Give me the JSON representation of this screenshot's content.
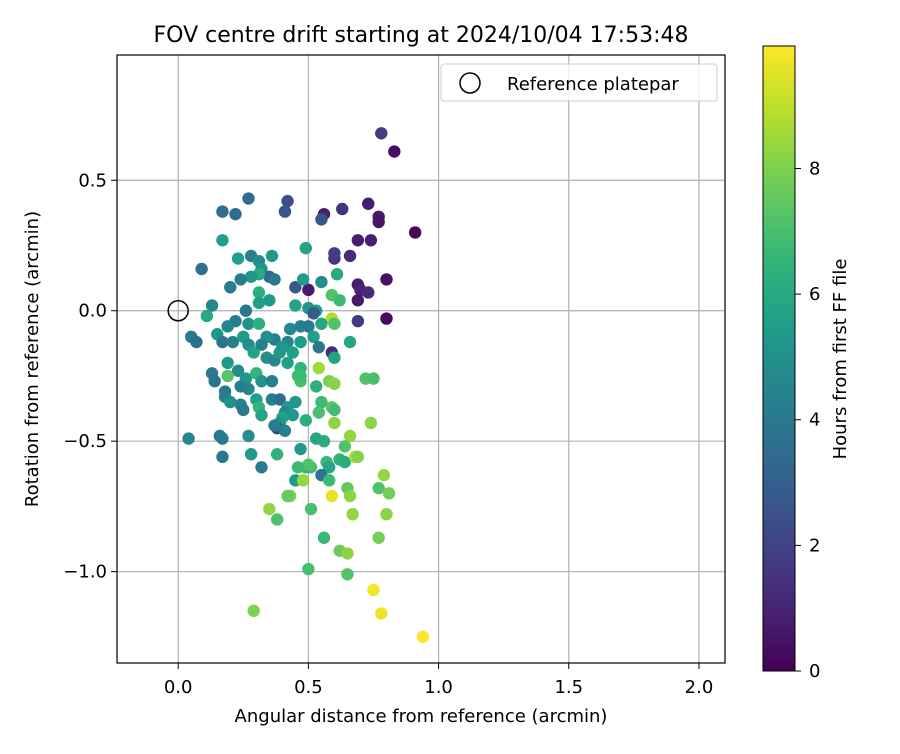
{
  "chart_data": {
    "type": "scatter",
    "title": "FOV centre drift starting at 2024/10/04 17:53:48",
    "xlabel": "Angular distance from reference (arcmin)",
    "ylabel": "Rotation from reference (arcmin)",
    "xlim": [
      -0.235,
      2.1
    ],
    "ylim": [
      -1.35,
      0.98
    ],
    "xticks": [
      0.0,
      0.5,
      1.0,
      1.5,
      2.0
    ],
    "xtick_labels": [
      "0.0",
      "0.5",
      "1.0",
      "1.5",
      "2.0"
    ],
    "yticks": [
      -1.0,
      -0.5,
      0.0,
      0.5
    ],
    "ytick_labels": [
      "−1.0",
      "−0.5",
      "0.0",
      "0.5"
    ],
    "grid": true,
    "colormap": "viridis",
    "colorbar": {
      "label": "Hours from first FF file",
      "range": [
        0,
        9.95
      ],
      "ticks": [
        0,
        2,
        4,
        6,
        8
      ],
      "tick_labels": [
        "0",
        "2",
        "4",
        "6",
        "8"
      ]
    },
    "legend": {
      "placement": "top-right",
      "entries": [
        {
          "label": "Reference platepar",
          "marker": "open-circle"
        }
      ]
    },
    "reference_point": {
      "x": 0.0,
      "y": 0.0
    },
    "points": [
      {
        "x": 0.78,
        "y": 0.68,
        "c": 1.8
      },
      {
        "x": 0.83,
        "y": 0.61,
        "c": 0.4
      },
      {
        "x": 0.91,
        "y": 0.3,
        "c": 0.2
      },
      {
        "x": 0.73,
        "y": 0.41,
        "c": 0.8
      },
      {
        "x": 0.77,
        "y": 0.36,
        "c": 0.7
      },
      {
        "x": 0.77,
        "y": 0.34,
        "c": 0.6
      },
      {
        "x": 0.63,
        "y": 0.39,
        "c": 1.5
      },
      {
        "x": 0.56,
        "y": 0.37,
        "c": 0.8
      },
      {
        "x": 0.55,
        "y": 0.35,
        "c": 2.6
      },
      {
        "x": 0.42,
        "y": 0.42,
        "c": 2.4
      },
      {
        "x": 0.41,
        "y": 0.38,
        "c": 2.6
      },
      {
        "x": 0.27,
        "y": 0.43,
        "c": 3.5
      },
      {
        "x": 0.17,
        "y": 0.38,
        "c": 3.6
      },
      {
        "x": 0.22,
        "y": 0.37,
        "c": 3.5
      },
      {
        "x": 0.69,
        "y": 0.27,
        "c": 0.8
      },
      {
        "x": 0.74,
        "y": 0.27,
        "c": 0.9
      },
      {
        "x": 0.66,
        "y": 0.21,
        "c": 1.2
      },
      {
        "x": 0.6,
        "y": 0.2,
        "c": 1.6
      },
      {
        "x": 0.6,
        "y": 0.22,
        "c": 1.8
      },
      {
        "x": 0.8,
        "y": 0.12,
        "c": 0.5
      },
      {
        "x": 0.69,
        "y": 0.1,
        "c": 0.8
      },
      {
        "x": 0.7,
        "y": 0.08,
        "c": 1.0
      },
      {
        "x": 0.73,
        "y": 0.07,
        "c": 1.2
      },
      {
        "x": 0.69,
        "y": 0.04,
        "c": 0.7
      },
      {
        "x": 0.8,
        "y": -0.03,
        "c": 0.3
      },
      {
        "x": 0.69,
        "y": -0.04,
        "c": 1.7
      },
      {
        "x": 0.5,
        "y": 0.08,
        "c": 0.7
      },
      {
        "x": 0.45,
        "y": 0.09,
        "c": 2.8
      },
      {
        "x": 0.49,
        "y": 0.24,
        "c": 5.8
      },
      {
        "x": 0.48,
        "y": 0.12,
        "c": 5.5
      },
      {
        "x": 0.61,
        "y": 0.14,
        "c": 6.0
      },
      {
        "x": 0.55,
        "y": 0.11,
        "c": 4.9
      },
      {
        "x": 0.59,
        "y": 0.06,
        "c": 7.2
      },
      {
        "x": 0.62,
        "y": 0.04,
        "c": 6.8
      },
      {
        "x": 0.5,
        "y": 0.01,
        "c": 5.2
      },
      {
        "x": 0.53,
        "y": 0.0,
        "c": 5.5
      },
      {
        "x": 0.45,
        "y": 0.02,
        "c": 5.8
      },
      {
        "x": 0.52,
        "y": -0.01,
        "c": 2.8
      },
      {
        "x": 0.59,
        "y": -0.03,
        "c": 8.8
      },
      {
        "x": 0.6,
        "y": -0.05,
        "c": 7.2
      },
      {
        "x": 0.55,
        "y": -0.05,
        "c": 5.9
      },
      {
        "x": 0.43,
        "y": -0.07,
        "c": 4.7
      },
      {
        "x": 0.47,
        "y": -0.06,
        "c": 4.4
      },
      {
        "x": 0.5,
        "y": -0.06,
        "c": 4.1
      },
      {
        "x": 0.52,
        "y": -0.1,
        "c": 5.6
      },
      {
        "x": 0.47,
        "y": -0.12,
        "c": 5.5
      },
      {
        "x": 0.42,
        "y": -0.12,
        "c": 4.6
      },
      {
        "x": 0.37,
        "y": -0.11,
        "c": 4.2
      },
      {
        "x": 0.34,
        "y": -0.1,
        "c": 5.0
      },
      {
        "x": 0.4,
        "y": -0.14,
        "c": 5.3
      },
      {
        "x": 0.44,
        "y": -0.16,
        "c": 5.6
      },
      {
        "x": 0.54,
        "y": -0.14,
        "c": 4.1
      },
      {
        "x": 0.59,
        "y": -0.16,
        "c": 1.3
      },
      {
        "x": 0.6,
        "y": -0.18,
        "c": 5.8
      },
      {
        "x": 0.66,
        "y": -0.12,
        "c": 5.9
      },
      {
        "x": 0.28,
        "y": 0.21,
        "c": 4.3
      },
      {
        "x": 0.31,
        "y": 0.19,
        "c": 4.8
      },
      {
        "x": 0.36,
        "y": 0.21,
        "c": 5.4
      },
      {
        "x": 0.32,
        "y": 0.16,
        "c": 5.1
      },
      {
        "x": 0.35,
        "y": 0.13,
        "c": 3.4
      },
      {
        "x": 0.31,
        "y": 0.14,
        "c": 6.0
      },
      {
        "x": 0.37,
        "y": 0.12,
        "c": 4.0
      },
      {
        "x": 0.28,
        "y": 0.13,
        "c": 5.2
      },
      {
        "x": 0.24,
        "y": 0.12,
        "c": 4.3
      },
      {
        "x": 0.23,
        "y": 0.2,
        "c": 5.6
      },
      {
        "x": 0.17,
        "y": 0.27,
        "c": 5.6
      },
      {
        "x": 0.09,
        "y": 0.16,
        "c": 3.7
      },
      {
        "x": 0.2,
        "y": 0.09,
        "c": 4.2
      },
      {
        "x": 0.31,
        "y": 0.07,
        "c": 6.2
      },
      {
        "x": 0.35,
        "y": 0.04,
        "c": 5.4
      },
      {
        "x": 0.31,
        "y": 0.03,
        "c": 5.6
      },
      {
        "x": 0.26,
        "y": 0.0,
        "c": 4.0
      },
      {
        "x": 0.13,
        "y": 0.02,
        "c": 4.7
      },
      {
        "x": 0.11,
        "y": -0.02,
        "c": 6.0
      },
      {
        "x": 0.22,
        "y": -0.04,
        "c": 4.1
      },
      {
        "x": 0.19,
        "y": -0.06,
        "c": 4.6
      },
      {
        "x": 0.27,
        "y": -0.05,
        "c": 5.0
      },
      {
        "x": 0.31,
        "y": -0.05,
        "c": 6.3
      },
      {
        "x": 0.15,
        "y": -0.09,
        "c": 5.2
      },
      {
        "x": 0.05,
        "y": -0.1,
        "c": 4.0
      },
      {
        "x": 0.07,
        "y": -0.12,
        "c": 3.6
      },
      {
        "x": 0.17,
        "y": -0.12,
        "c": 3.9
      },
      {
        "x": 0.21,
        "y": -0.12,
        "c": 4.3
      },
      {
        "x": 0.25,
        "y": -0.1,
        "c": 5.5
      },
      {
        "x": 0.27,
        "y": -0.13,
        "c": 4.9
      },
      {
        "x": 0.29,
        "y": -0.16,
        "c": 5.8
      },
      {
        "x": 0.32,
        "y": -0.13,
        "c": 4.4
      },
      {
        "x": 0.34,
        "y": -0.18,
        "c": 4.9
      },
      {
        "x": 0.37,
        "y": -0.19,
        "c": 4.6
      },
      {
        "x": 0.39,
        "y": -0.16,
        "c": 5.3
      },
      {
        "x": 0.42,
        "y": -0.2,
        "c": 5.6
      },
      {
        "x": 0.47,
        "y": -0.22,
        "c": 6.5
      },
      {
        "x": 0.46,
        "y": -0.25,
        "c": 6.8
      },
      {
        "x": 0.54,
        "y": -0.22,
        "c": 8.5
      },
      {
        "x": 0.53,
        "y": -0.29,
        "c": 6.3
      },
      {
        "x": 0.58,
        "y": -0.27,
        "c": 8.0
      },
      {
        "x": 0.6,
        "y": -0.28,
        "c": 8.2
      },
      {
        "x": 0.72,
        "y": -0.26,
        "c": 7.2
      },
      {
        "x": 0.75,
        "y": -0.26,
        "c": 7.0
      },
      {
        "x": 0.19,
        "y": -0.2,
        "c": 5.3
      },
      {
        "x": 0.23,
        "y": -0.23,
        "c": 4.8
      },
      {
        "x": 0.13,
        "y": -0.24,
        "c": 4.0
      },
      {
        "x": 0.14,
        "y": -0.27,
        "c": 3.8
      },
      {
        "x": 0.19,
        "y": -0.25,
        "c": 7.3
      },
      {
        "x": 0.26,
        "y": -0.26,
        "c": 5.2
      },
      {
        "x": 0.3,
        "y": -0.24,
        "c": 6.5
      },
      {
        "x": 0.32,
        "y": -0.27,
        "c": 5.1
      },
      {
        "x": 0.36,
        "y": -0.27,
        "c": 4.4
      },
      {
        "x": 0.27,
        "y": -0.3,
        "c": 4.6
      },
      {
        "x": 0.24,
        "y": -0.29,
        "c": 4.2
      },
      {
        "x": 0.47,
        "y": -0.27,
        "c": 7.0
      },
      {
        "x": 0.47,
        "y": -0.25,
        "c": 6.8
      },
      {
        "x": 0.18,
        "y": -0.31,
        "c": 4.1
      },
      {
        "x": 0.18,
        "y": -0.33,
        "c": 4.3
      },
      {
        "x": 0.2,
        "y": -0.35,
        "c": 5.0
      },
      {
        "x": 0.24,
        "y": -0.36,
        "c": 4.5
      },
      {
        "x": 0.25,
        "y": -0.38,
        "c": 4.0
      },
      {
        "x": 0.3,
        "y": -0.34,
        "c": 5.6
      },
      {
        "x": 0.31,
        "y": -0.37,
        "c": 6.5
      },
      {
        "x": 0.36,
        "y": -0.34,
        "c": 4.4
      },
      {
        "x": 0.39,
        "y": -0.34,
        "c": 3.6
      },
      {
        "x": 0.42,
        "y": -0.37,
        "c": 5.4
      },
      {
        "x": 0.45,
        "y": -0.35,
        "c": 5.2
      },
      {
        "x": 0.41,
        "y": -0.39,
        "c": 4.5
      },
      {
        "x": 0.4,
        "y": -0.41,
        "c": 5.7
      },
      {
        "x": 0.44,
        "y": -0.4,
        "c": 5.3
      },
      {
        "x": 0.55,
        "y": -0.35,
        "c": 6.8
      },
      {
        "x": 0.54,
        "y": -0.39,
        "c": 7.0
      },
      {
        "x": 0.59,
        "y": -0.37,
        "c": 7.4
      },
      {
        "x": 0.6,
        "y": -0.38,
        "c": 6.9
      },
      {
        "x": 0.6,
        "y": -0.43,
        "c": 8.2
      },
      {
        "x": 0.49,
        "y": -0.42,
        "c": 6.2
      },
      {
        "x": 0.32,
        "y": -0.4,
        "c": 5.8
      },
      {
        "x": 0.39,
        "y": -0.43,
        "c": 5.0
      },
      {
        "x": 0.38,
        "y": -0.45,
        "c": 1.8
      },
      {
        "x": 0.37,
        "y": -0.44,
        "c": 4.2
      },
      {
        "x": 0.41,
        "y": -0.46,
        "c": 4.4
      },
      {
        "x": 0.16,
        "y": -0.48,
        "c": 3.8
      },
      {
        "x": 0.04,
        "y": -0.49,
        "c": 4.6
      },
      {
        "x": 0.17,
        "y": -0.49,
        "c": 4.1
      },
      {
        "x": 0.27,
        "y": -0.48,
        "c": 4.9
      },
      {
        "x": 0.17,
        "y": -0.56,
        "c": 4.0
      },
      {
        "x": 0.28,
        "y": -0.55,
        "c": 5.3
      },
      {
        "x": 0.32,
        "y": -0.6,
        "c": 4.1
      },
      {
        "x": 0.38,
        "y": -0.55,
        "c": 6.4
      },
      {
        "x": 0.47,
        "y": -0.53,
        "c": 5.4
      },
      {
        "x": 0.53,
        "y": -0.49,
        "c": 5.9
      },
      {
        "x": 0.56,
        "y": -0.5,
        "c": 6.1
      },
      {
        "x": 0.66,
        "y": -0.48,
        "c": 8.3
      },
      {
        "x": 0.64,
        "y": -0.52,
        "c": 7.2
      },
      {
        "x": 0.74,
        "y": -0.43,
        "c": 8.2
      },
      {
        "x": 0.62,
        "y": -0.57,
        "c": 6.4
      },
      {
        "x": 0.64,
        "y": -0.58,
        "c": 6.2
      },
      {
        "x": 0.68,
        "y": -0.56,
        "c": 8.7
      },
      {
        "x": 0.69,
        "y": -0.56,
        "c": 8.1
      },
      {
        "x": 0.57,
        "y": -0.58,
        "c": 6.7
      },
      {
        "x": 0.58,
        "y": -0.6,
        "c": 5.9
      },
      {
        "x": 0.55,
        "y": -0.63,
        "c": 3.9
      },
      {
        "x": 0.51,
        "y": -0.6,
        "c": 7.0
      },
      {
        "x": 0.49,
        "y": -0.6,
        "c": 6.5
      },
      {
        "x": 0.5,
        "y": -0.59,
        "c": 7.2
      },
      {
        "x": 0.46,
        "y": -0.6,
        "c": 6.8
      },
      {
        "x": 0.45,
        "y": -0.65,
        "c": 5.5
      },
      {
        "x": 0.48,
        "y": -0.65,
        "c": 8.4
      },
      {
        "x": 0.58,
        "y": -0.65,
        "c": 6.8
      },
      {
        "x": 0.65,
        "y": -0.68,
        "c": 7.5
      },
      {
        "x": 0.66,
        "y": -0.71,
        "c": 8.2
      },
      {
        "x": 0.59,
        "y": -0.71,
        "c": 9.6
      },
      {
        "x": 0.77,
        "y": -0.68,
        "c": 7.2
      },
      {
        "x": 0.79,
        "y": -0.63,
        "c": 8.4
      },
      {
        "x": 0.81,
        "y": -0.7,
        "c": 7.8
      },
      {
        "x": 0.8,
        "y": -0.78,
        "c": 8.2
      },
      {
        "x": 0.67,
        "y": -0.78,
        "c": 8.3
      },
      {
        "x": 0.43,
        "y": -0.71,
        "c": 8.0
      },
      {
        "x": 0.42,
        "y": -0.71,
        "c": 7.6
      },
      {
        "x": 0.35,
        "y": -0.76,
        "c": 8.3
      },
      {
        "x": 0.38,
        "y": -0.8,
        "c": 7.1
      },
      {
        "x": 0.51,
        "y": -0.76,
        "c": 7.0
      },
      {
        "x": 0.56,
        "y": -0.87,
        "c": 6.7
      },
      {
        "x": 0.62,
        "y": -0.92,
        "c": 7.7
      },
      {
        "x": 0.65,
        "y": -0.93,
        "c": 8.2
      },
      {
        "x": 0.77,
        "y": -0.87,
        "c": 7.8
      },
      {
        "x": 0.5,
        "y": -0.99,
        "c": 7.0
      },
      {
        "x": 0.65,
        "y": -1.01,
        "c": 7.2
      },
      {
        "x": 0.75,
        "y": -1.07,
        "c": 9.8
      },
      {
        "x": 0.78,
        "y": -1.16,
        "c": 9.7
      },
      {
        "x": 0.29,
        "y": -1.15,
        "c": 8.0
      },
      {
        "x": 0.94,
        "y": -1.25,
        "c": 9.9
      }
    ]
  }
}
